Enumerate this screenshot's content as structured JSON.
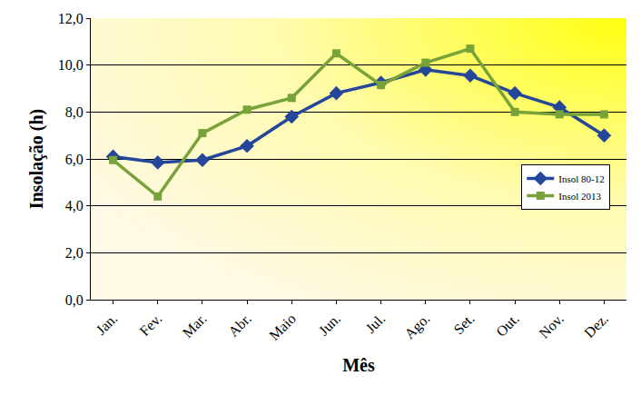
{
  "chart_data": {
    "type": "line",
    "x_label": "Mês",
    "y_label": "Insolação (h)",
    "categories": [
      "Jan.",
      "Fev.",
      "Mar.",
      "Abr.",
      "Maio",
      "Jun.",
      "Jul.",
      "Ago.",
      "Set.",
      "Out.",
      "Nov.",
      "Dez."
    ],
    "series": [
      {
        "name": "Insol 80-12",
        "color": "#24479a",
        "marker": "diamond",
        "line_style": "solid",
        "values": [
          6.1,
          5.85,
          5.95,
          6.55,
          7.8,
          8.8,
          9.25,
          9.8,
          9.55,
          8.8,
          8.2,
          7.0
        ]
      },
      {
        "name": "Insol 2013",
        "color": "#77a33a",
        "marker": "square",
        "line_style": "solid",
        "values": [
          5.95,
          4.4,
          7.1,
          8.1,
          8.6,
          10.5,
          9.15,
          10.1,
          10.7,
          8.0,
          7.9,
          7.9
        ]
      }
    ],
    "ylim": [
      0,
      12
    ],
    "yticks": [
      {
        "value": 0,
        "label": "0,0"
      },
      {
        "value": 2,
        "label": "2,0"
      },
      {
        "value": 4,
        "label": "4,0"
      },
      {
        "value": 6,
        "label": "6,0"
      },
      {
        "value": 8,
        "label": "8,0"
      },
      {
        "value": 10,
        "label": "10,0"
      },
      {
        "value": 12,
        "label": "12,0"
      }
    ],
    "grid": true,
    "legend": "right"
  }
}
